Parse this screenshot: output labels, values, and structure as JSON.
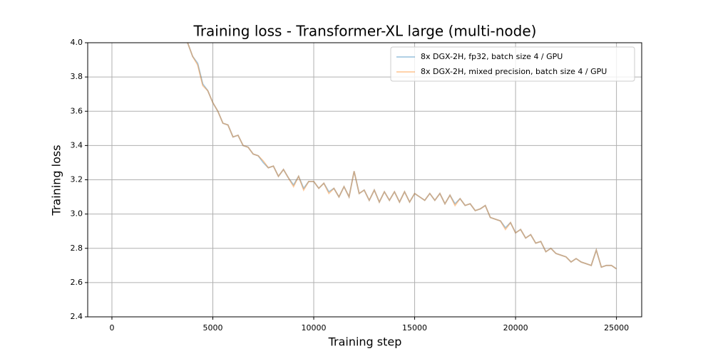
{
  "chart_data": {
    "type": "line",
    "title": "Training loss - Transformer-XL large (multi-node)",
    "x_label": "Training step",
    "y_label": "Training loss",
    "x": [
      3750,
      4000,
      4250,
      4500,
      4750,
      5000,
      5250,
      5500,
      5750,
      6000,
      6250,
      6500,
      6750,
      7000,
      7250,
      7500,
      7750,
      8000,
      8250,
      8500,
      8750,
      9000,
      9250,
      9500,
      9750,
      10000,
      10250,
      10500,
      10750,
      11000,
      11250,
      11500,
      11750,
      12000,
      12250,
      12500,
      12750,
      13000,
      13250,
      13500,
      13750,
      14000,
      14250,
      14500,
      14750,
      15000,
      15250,
      15500,
      15750,
      16000,
      16250,
      16500,
      16750,
      17000,
      17250,
      17500,
      17750,
      18000,
      18250,
      18500,
      18750,
      19000,
      19250,
      19500,
      19750,
      20000,
      20250,
      20500,
      20750,
      21000,
      21250,
      21500,
      21750,
      22000,
      22250,
      22500,
      22750,
      23000,
      23250,
      23500,
      23750,
      24000,
      24250,
      24500,
      24750,
      25000
    ],
    "series": [
      {
        "name": "8x DGX-2H, fp32, batch size 4 / GPU",
        "color": "#1f77b4",
        "values": [
          4.0,
          3.92,
          3.88,
          3.76,
          3.72,
          3.65,
          3.6,
          3.53,
          3.52,
          3.45,
          3.46,
          3.4,
          3.39,
          3.35,
          3.34,
          3.3,
          3.27,
          3.28,
          3.22,
          3.26,
          3.21,
          3.17,
          3.22,
          3.15,
          3.19,
          3.19,
          3.15,
          3.18,
          3.13,
          3.15,
          3.1,
          3.16,
          3.1,
          3.25,
          3.12,
          3.14,
          3.08,
          3.14,
          3.07,
          3.13,
          3.08,
          3.13,
          3.07,
          3.13,
          3.07,
          3.12,
          3.1,
          3.08,
          3.12,
          3.08,
          3.12,
          3.06,
          3.11,
          3.06,
          3.09,
          3.05,
          3.06,
          3.02,
          3.03,
          3.05,
          2.98,
          2.97,
          2.96,
          2.92,
          2.95,
          2.89,
          2.91,
          2.86,
          2.88,
          2.83,
          2.84,
          2.78,
          2.8,
          2.77,
          2.76,
          2.75,
          2.72,
          2.74,
          2.72,
          2.71,
          2.7,
          2.79,
          2.69,
          2.7,
          2.7,
          2.68
        ]
      },
      {
        "name": "8x DGX-2H, mixed precision, batch size 4 / GPU",
        "color": "#ff7f0e",
        "values": [
          4.0,
          3.92,
          3.87,
          3.75,
          3.72,
          3.65,
          3.6,
          3.53,
          3.52,
          3.45,
          3.46,
          3.4,
          3.39,
          3.35,
          3.34,
          3.31,
          3.27,
          3.28,
          3.22,
          3.26,
          3.21,
          3.16,
          3.22,
          3.14,
          3.19,
          3.19,
          3.15,
          3.18,
          3.12,
          3.15,
          3.1,
          3.16,
          3.1,
          3.25,
          3.12,
          3.14,
          3.08,
          3.14,
          3.07,
          3.13,
          3.08,
          3.13,
          3.07,
          3.13,
          3.07,
          3.12,
          3.1,
          3.08,
          3.12,
          3.08,
          3.12,
          3.06,
          3.11,
          3.05,
          3.09,
          3.05,
          3.06,
          3.02,
          3.03,
          3.05,
          2.98,
          2.97,
          2.96,
          2.91,
          2.95,
          2.89,
          2.91,
          2.86,
          2.88,
          2.83,
          2.84,
          2.78,
          2.8,
          2.77,
          2.76,
          2.75,
          2.72,
          2.74,
          2.72,
          2.71,
          2.7,
          2.79,
          2.69,
          2.7,
          2.7,
          2.68
        ]
      }
    ],
    "xlim": [
      -1200,
      26250
    ],
    "ylim": [
      2.4,
      4.0
    ],
    "xticks": [
      0,
      5000,
      10000,
      15000,
      20000,
      25000
    ],
    "yticks": [
      2.4,
      2.6,
      2.8,
      {
        "value": 3,
        "label": "3.0"
      },
      3.2,
      3.4,
      3.6,
      3.8,
      {
        "value": 4,
        "label": "4.0"
      }
    ],
    "grid": true,
    "legend": "upper right"
  }
}
